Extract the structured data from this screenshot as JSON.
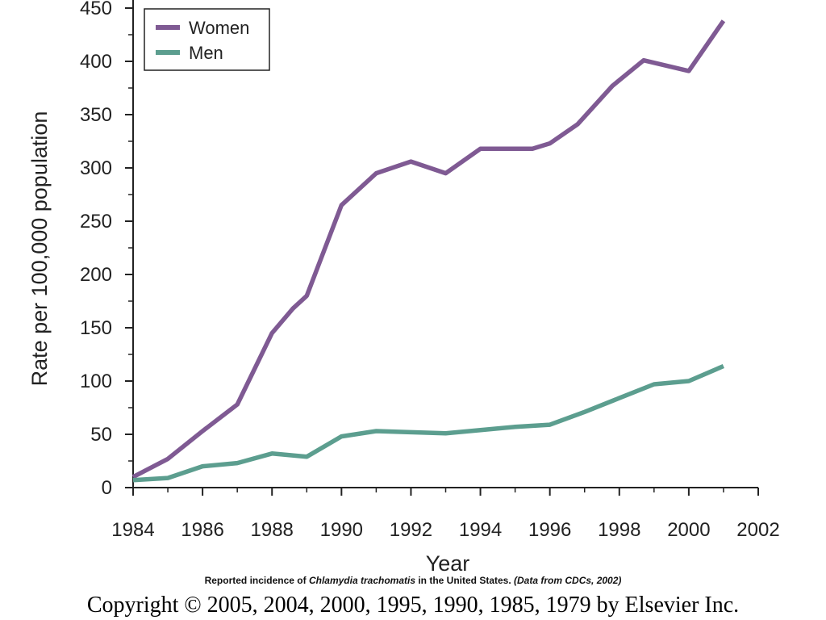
{
  "chart_data": {
    "type": "line",
    "xlabel": "Year",
    "ylabel": "Rate per 100,000 population",
    "xlim": [
      1984,
      2002
    ],
    "ylim": [
      0,
      450
    ],
    "x_ticks": [
      "1984",
      "1986",
      "1988",
      "1990",
      "1992",
      "1994",
      "1996",
      "1998",
      "2000",
      "2002"
    ],
    "y_ticks": [
      "0",
      "50",
      "100",
      "150",
      "200",
      "250",
      "300",
      "350",
      "400",
      "450"
    ],
    "legend_position": "top-left",
    "grid": false,
    "series": [
      {
        "name": "Women",
        "color": "#7f5a93",
        "x": [
          1984,
          1985,
          1986,
          1987,
          1988,
          1988.6,
          1989,
          1990,
          1991,
          1992,
          1993,
          1994,
          1995,
          1995.5,
          1996,
          1996.8,
          1997.8,
          1998.7,
          2000,
          2001
        ],
        "y": [
          10,
          27,
          53,
          78,
          145,
          168,
          180,
          265,
          295,
          306,
          295,
          318,
          318,
          318,
          323,
          341,
          377,
          401,
          391,
          438
        ]
      },
      {
        "name": "Men",
        "color": "#5c9e8f",
        "x": [
          1984,
          1985,
          1986,
          1987,
          1988,
          1989,
          1990,
          1991,
          1992,
          1993,
          1994,
          1995,
          1996,
          1997,
          1998,
          1999,
          2000,
          2001
        ],
        "y": [
          7,
          9,
          20,
          23,
          32,
          29,
          48,
          53,
          52,
          51,
          54,
          57,
          59,
          71,
          84,
          97,
          100,
          114
        ]
      }
    ]
  },
  "caption": {
    "prefix": "Reported incidence of ",
    "species": "Chlamydia trachomatis",
    "middle": " in the United States. ",
    "source": "(Data from CDCs,  2002)"
  },
  "copyright": "Copyright © 2005, 2004, 2000, 1995, 1990, 1985, 1979 by Elsevier Inc."
}
